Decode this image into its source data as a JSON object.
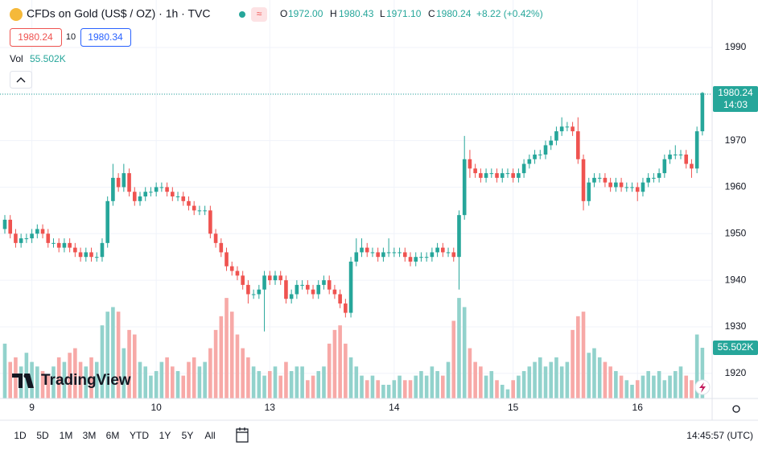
{
  "chart_data": {
    "type": "candlestick",
    "symbol": "CFDs on Gold (US$ / OZ) · 1h · TVC",
    "legend": [
      {
        "key": "O",
        "value": "1972.00"
      },
      {
        "key": "H",
        "value": "1980.43"
      },
      {
        "key": "L",
        "value": "1971.10"
      },
      {
        "key": "C",
        "value": "1980.24"
      }
    ],
    "change": "+8.22 (+0.42%)",
    "sell_price": "1980.24",
    "spread": "10",
    "buy_price": "1980.34",
    "volume_label": "Vol",
    "volume_value": "55.502K",
    "price_tag": "1980.24",
    "countdown": "14:03",
    "watermark": "TradingView",
    "open": [
      1951,
      1953,
      1950,
      1948,
      1949,
      1949,
      1950,
      1951,
      1950,
      1948,
      1948,
      1947,
      1948,
      1947,
      1946,
      1945,
      1946,
      1945,
      1945,
      1948,
      1957,
      1962,
      1960,
      1963,
      1959,
      1957,
      1958,
      1959,
      1959,
      1960,
      1960,
      1959,
      1958,
      1958,
      1957,
      1956,
      1955,
      1955,
      1955,
      1950,
      1948,
      1946,
      1943,
      1942,
      1941,
      1939,
      1937,
      1937,
      1938,
      1941,
      1940,
      1941,
      1940,
      1936,
      1937,
      1939,
      1939,
      1938,
      1937,
      1939,
      1940,
      1938,
      1937,
      1935,
      1933,
      1944,
      1946,
      1947,
      1946,
      1946,
      1945,
      1946,
      1946,
      1946,
      1946,
      1945,
      1944,
      1945,
      1945,
      1945,
      1946,
      1947,
      1946,
      1946,
      1945,
      1954,
      1966,
      1964,
      1963,
      1962,
      1963,
      1963,
      1962,
      1963,
      1963,
      1962,
      1963,
      1965,
      1966,
      1967,
      1967,
      1969,
      1970,
      1972,
      1973,
      1973,
      1972,
      1966,
      1957,
      1961,
      1962,
      1962,
      1961,
      1960,
      1961,
      1960,
      1960,
      1960,
      1959,
      1961,
      1962,
      1962,
      1963,
      1966,
      1967,
      1967,
      1967,
      1965,
      1964,
      1972
    ],
    "high": [
      1954,
      1954,
      1951,
      1950,
      1950,
      1951,
      1952,
      1952,
      1951,
      1949,
      1949,
      1949,
      1949,
      1948,
      1947,
      1947,
      1947,
      1946,
      1949,
      1958,
      1965,
      1963,
      1965,
      1964,
      1960,
      1959,
      1960,
      1960,
      1961,
      1961,
      1961,
      1960,
      1959,
      1959,
      1958,
      1957,
      1956,
      1956,
      1956,
      1951,
      1949,
      1947,
      1944,
      1943,
      1942,
      1940,
      1938,
      1939,
      1942,
      1942,
      1942,
      1942,
      1941,
      1938,
      1940,
      1940,
      1940,
      1939,
      1940,
      1941,
      1941,
      1939,
      1938,
      1936,
      1945,
      1949,
      1949,
      1948,
      1947,
      1947,
      1947,
      1949,
      1947,
      1947,
      1947,
      1946,
      1946,
      1946,
      1946,
      1947,
      1948,
      1948,
      1947,
      1947,
      1955,
      1971,
      1968,
      1965,
      1964,
      1964,
      1964,
      1964,
      1964,
      1964,
      1964,
      1964,
      1966,
      1967,
      1968,
      1968,
      1970,
      1971,
      1973,
      1975,
      1974,
      1974,
      1975,
      1967,
      1962,
      1963,
      1963,
      1963,
      1962,
      1962,
      1962,
      1961,
      1961,
      1961,
      1962,
      1963,
      1963,
      1964,
      1967,
      1968,
      1969,
      1968,
      1968,
      1966,
      1973,
      1980.43
    ],
    "low": [
      1950,
      1949,
      1947,
      1947,
      1948,
      1948,
      1949,
      1949,
      1947,
      1947,
      1946,
      1946,
      1946,
      1945,
      1944,
      1944,
      1944,
      1944,
      1944,
      1947,
      1956,
      1959,
      1959,
      1958,
      1956,
      1956,
      1957,
      1958,
      1958,
      1959,
      1958,
      1957,
      1957,
      1956,
      1955,
      1954,
      1954,
      1954,
      1949,
      1947,
      1945,
      1942,
      1941,
      1940,
      1938,
      1935,
      1936,
      1936,
      1929,
      1939,
      1939,
      1939,
      1935,
      1935,
      1936,
      1938,
      1937,
      1936,
      1936,
      1938,
      1937,
      1936,
      1934,
      1932,
      1932,
      1943,
      1945,
      1945,
      1945,
      1944,
      1944,
      1945,
      1945,
      1945,
      1944,
      1943,
      1943,
      1944,
      1944,
      1944,
      1945,
      1945,
      1945,
      1944,
      1938,
      1953,
      1962,
      1962,
      1961,
      1961,
      1962,
      1961,
      1961,
      1962,
      1961,
      1961,
      1962,
      1964,
      1965,
      1966,
      1966,
      1968,
      1969,
      1971,
      1972,
      1971,
      1965,
      1955,
      1956,
      1960,
      1961,
      1960,
      1959,
      1959,
      1959,
      1959,
      1959,
      1957,
      1958,
      1960,
      1961,
      1961,
      1962,
      1965,
      1966,
      1966,
      1964,
      1962,
      1963,
      1971.1
    ],
    "close": [
      1953,
      1950,
      1948,
      1949,
      1949,
      1950,
      1951,
      1950,
      1948,
      1948,
      1947,
      1948,
      1947,
      1946,
      1945,
      1946,
      1945,
      1945,
      1948,
      1957,
      1962,
      1960,
      1963,
      1959,
      1957,
      1958,
      1959,
      1959,
      1960,
      1960,
      1959,
      1958,
      1958,
      1957,
      1956,
      1955,
      1955,
      1955,
      1950,
      1948,
      1946,
      1943,
      1942,
      1941,
      1939,
      1937,
      1937,
      1938,
      1941,
      1940,
      1941,
      1940,
      1936,
      1937,
      1939,
      1939,
      1938,
      1937,
      1939,
      1940,
      1938,
      1937,
      1935,
      1933,
      1944,
      1946,
      1947,
      1946,
      1946,
      1945,
      1946,
      1946,
      1946,
      1946,
      1945,
      1944,
      1945,
      1945,
      1945,
      1946,
      1947,
      1946,
      1946,
      1945,
      1954,
      1966,
      1964,
      1963,
      1962,
      1963,
      1963,
      1962,
      1963,
      1963,
      1962,
      1963,
      1965,
      1966,
      1967,
      1967,
      1969,
      1970,
      1972,
      1973,
      1973,
      1972,
      1966,
      1957,
      1961,
      1962,
      1962,
      1961,
      1960,
      1961,
      1960,
      1960,
      1960,
      1959,
      1961,
      1962,
      1962,
      1963,
      1966,
      1967,
      1967,
      1967,
      1965,
      1964,
      1972,
      1980.24
    ],
    "volume": [
      60,
      40,
      45,
      35,
      50,
      40,
      35,
      30,
      25,
      35,
      45,
      40,
      50,
      55,
      40,
      35,
      45,
      40,
      80,
      95,
      100,
      95,
      55,
      75,
      70,
      40,
      35,
      25,
      30,
      40,
      45,
      35,
      30,
      25,
      40,
      45,
      35,
      40,
      55,
      75,
      90,
      110,
      95,
      70,
      55,
      45,
      35,
      30,
      25,
      30,
      35,
      25,
      40,
      30,
      35,
      35,
      20,
      25,
      30,
      35,
      60,
      75,
      80,
      60,
      45,
      35,
      25,
      20,
      25,
      20,
      15,
      15,
      20,
      25,
      20,
      20,
      25,
      30,
      25,
      35,
      30,
      25,
      40,
      85,
      110,
      100,
      55,
      40,
      35,
      25,
      30,
      20,
      15,
      10,
      20,
      25,
      30,
      35,
      40,
      45,
      35,
      40,
      45,
      35,
      40,
      75,
      90,
      95,
      50,
      55,
      45,
      40,
      35,
      30,
      25,
      20,
      15,
      20,
      25,
      30,
      25,
      30,
      20,
      25,
      30,
      35,
      25,
      20,
      70,
      55.502
    ],
    "ylim": [
      1914.6,
      2000.2
    ],
    "yticks": [
      1990,
      1980,
      1970,
      1960,
      1950,
      1940,
      1930,
      1920
    ],
    "volume_lim": [
      0,
      436
    ],
    "xticks": [
      {
        "value": 5,
        "label": "9"
      },
      {
        "value": 28,
        "label": "10"
      },
      {
        "value": 49,
        "label": "13"
      },
      {
        "value": 72,
        "label": "14"
      },
      {
        "value": 94,
        "label": "15"
      },
      {
        "value": 117,
        "label": "16"
      }
    ],
    "grid": true,
    "up_color": "#26a69a",
    "down_color": "#ef5350",
    "volume_up_color": "#92d2cc",
    "volume_down_color": "#f7a9a7",
    "ranges": [
      "1D",
      "5D",
      "1M",
      "3M",
      "6M",
      "YTD",
      "1Y",
      "5Y",
      "All"
    ],
    "clock": "14:45:57 (UTC)"
  }
}
